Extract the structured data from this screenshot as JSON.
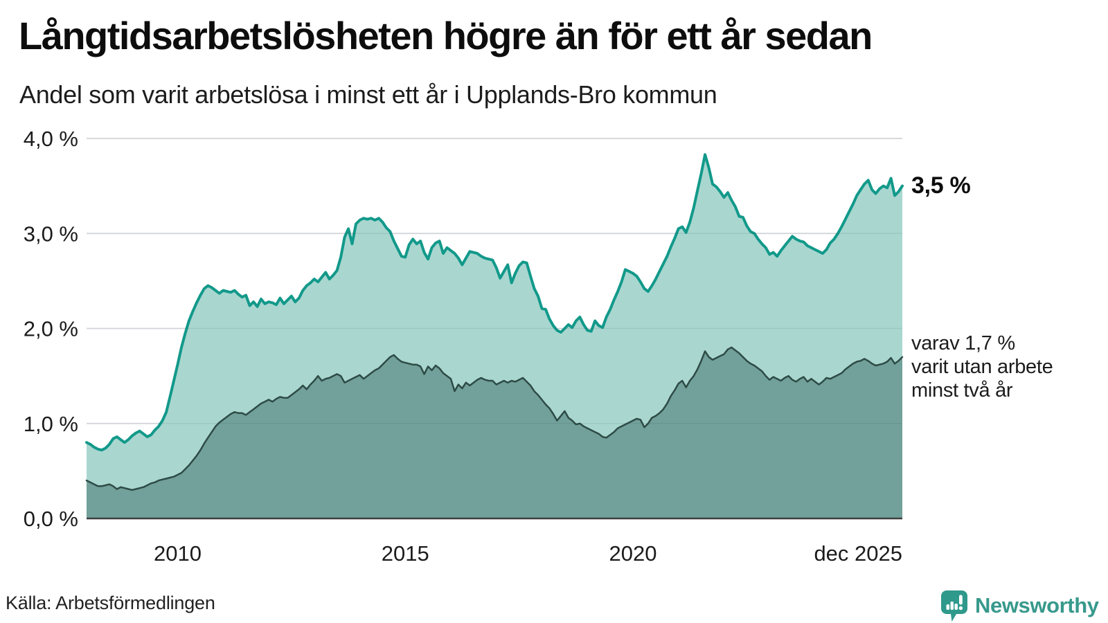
{
  "header": {
    "title": "Långtidsarbetslösheten högre än för ett år sedan",
    "subtitle": "Andel som varit arbetslösa i minst ett år i Upplands-Bro kommun"
  },
  "chart_data": {
    "type": "area",
    "title": "Långtidsarbetslösheten högre än för ett år sedan",
    "subtitle": "Andel som varit arbetslösa i minst ett år i Upplands-Bro kommun",
    "unit": "%",
    "x_range": "jan 2008 – dec 2025 (monthly)",
    "ylim": [
      0,
      4
    ],
    "grid": true,
    "legend_position": "right-edge-annotations",
    "style": {
      "grid": "#e5e5e9",
      "grid_over_fill": "rgba(40,70,65,0.10)",
      "axis": "#3f3f3f",
      "text": "#1b1b1b",
      "tick_font_size": 31
    },
    "yticks": [
      {
        "value": 0,
        "label": "0,0 %"
      },
      {
        "value": 1,
        "label": "1,0 %"
      },
      {
        "value": 2,
        "label": "2,0 %"
      },
      {
        "value": 3,
        "label": "3,0 %"
      },
      {
        "value": 4,
        "label": "4,0 %"
      }
    ],
    "xticks": [
      {
        "month_index": 24,
        "label": "2010",
        "anchor": "middle"
      },
      {
        "month_index": 84,
        "label": "2015",
        "anchor": "middle"
      },
      {
        "month_index": 144,
        "label": "2020",
        "anchor": "middle"
      },
      {
        "month_index": 215,
        "label": "dec 2025",
        "anchor": "end"
      }
    ],
    "series": [
      {
        "id": "minst-ett-ar",
        "name": "Andel som varit arbetslösa i minst ett år",
        "color": "#12998a",
        "fill": "#a9d7d0",
        "line_width": 4,
        "end_value_label": "3,5 %",
        "values": [
          0.8,
          0.78,
          0.75,
          0.73,
          0.72,
          0.74,
          0.78,
          0.84,
          0.86,
          0.83,
          0.8,
          0.83,
          0.87,
          0.9,
          0.92,
          0.89,
          0.86,
          0.88,
          0.93,
          0.97,
          1.03,
          1.12,
          1.28,
          1.45,
          1.62,
          1.8,
          1.95,
          2.08,
          2.18,
          2.27,
          2.35,
          2.42,
          2.45,
          2.43,
          2.4,
          2.37,
          2.4,
          2.39,
          2.38,
          2.4,
          2.36,
          2.33,
          2.35,
          2.24,
          2.28,
          2.23,
          2.31,
          2.26,
          2.28,
          2.27,
          2.25,
          2.32,
          2.26,
          2.3,
          2.34,
          2.28,
          2.32,
          2.4,
          2.45,
          2.48,
          2.52,
          2.49,
          2.54,
          2.59,
          2.52,
          2.56,
          2.61,
          2.75,
          2.96,
          3.05,
          2.89,
          3.1,
          3.14,
          3.16,
          3.15,
          3.16,
          3.14,
          3.16,
          3.12,
          3.06,
          3.02,
          2.92,
          2.84,
          2.76,
          2.75,
          2.88,
          2.94,
          2.89,
          2.92,
          2.8,
          2.73,
          2.85,
          2.9,
          2.92,
          2.79,
          2.85,
          2.82,
          2.79,
          2.74,
          2.67,
          2.74,
          2.81,
          2.8,
          2.79,
          2.76,
          2.74,
          2.73,
          2.72,
          2.64,
          2.53,
          2.6,
          2.67,
          2.48,
          2.58,
          2.66,
          2.7,
          2.69,
          2.55,
          2.42,
          2.34,
          2.21,
          2.2,
          2.1,
          2.03,
          1.98,
          1.96,
          2.0,
          2.04,
          2.01,
          2.08,
          2.12,
          2.04,
          1.98,
          1.97,
          2.08,
          2.03,
          2.01,
          2.12,
          2.2,
          2.3,
          2.39,
          2.49,
          2.62,
          2.6,
          2.58,
          2.55,
          2.49,
          2.42,
          2.39,
          2.45,
          2.52,
          2.6,
          2.68,
          2.76,
          2.86,
          2.95,
          3.05,
          3.07,
          3.01,
          3.12,
          3.27,
          3.45,
          3.63,
          3.83,
          3.69,
          3.52,
          3.49,
          3.44,
          3.38,
          3.43,
          3.35,
          3.28,
          3.18,
          3.17,
          3.08,
          3.02,
          3.0,
          2.94,
          2.89,
          2.85,
          2.78,
          2.8,
          2.76,
          2.82,
          2.87,
          2.92,
          2.97,
          2.94,
          2.92,
          2.91,
          2.87,
          2.85,
          2.83,
          2.81,
          2.79,
          2.83,
          2.9,
          2.94,
          3.0,
          3.07,
          3.15,
          3.23,
          3.31,
          3.4,
          3.46,
          3.52,
          3.56,
          3.46,
          3.42,
          3.47,
          3.5,
          3.48,
          3.58,
          3.4,
          3.44,
          3.5
        ]
      },
      {
        "id": "minst-tva-ar",
        "name": "varav varit utan arbete minst två år",
        "color": "#2e4b46",
        "fill": "#72a09a",
        "line_width": 2.5,
        "end_value_label": "1,7 %",
        "values": [
          0.4,
          0.38,
          0.36,
          0.34,
          0.34,
          0.35,
          0.36,
          0.34,
          0.31,
          0.33,
          0.32,
          0.31,
          0.3,
          0.31,
          0.32,
          0.33,
          0.35,
          0.37,
          0.38,
          0.4,
          0.41,
          0.42,
          0.43,
          0.44,
          0.46,
          0.48,
          0.52,
          0.56,
          0.61,
          0.66,
          0.72,
          0.79,
          0.85,
          0.91,
          0.97,
          1.01,
          1.04,
          1.07,
          1.1,
          1.12,
          1.11,
          1.11,
          1.09,
          1.12,
          1.15,
          1.18,
          1.21,
          1.23,
          1.25,
          1.23,
          1.26,
          1.28,
          1.27,
          1.27,
          1.3,
          1.33,
          1.36,
          1.4,
          1.36,
          1.41,
          1.45,
          1.5,
          1.45,
          1.47,
          1.48,
          1.5,
          1.52,
          1.5,
          1.43,
          1.45,
          1.47,
          1.49,
          1.51,
          1.47,
          1.5,
          1.53,
          1.56,
          1.58,
          1.62,
          1.66,
          1.7,
          1.72,
          1.68,
          1.65,
          1.64,
          1.63,
          1.62,
          1.62,
          1.6,
          1.52,
          1.6,
          1.56,
          1.61,
          1.58,
          1.53,
          1.5,
          1.47,
          1.34,
          1.41,
          1.37,
          1.43,
          1.4,
          1.43,
          1.46,
          1.48,
          1.46,
          1.45,
          1.45,
          1.41,
          1.43,
          1.45,
          1.43,
          1.45,
          1.44,
          1.46,
          1.48,
          1.44,
          1.4,
          1.34,
          1.3,
          1.25,
          1.2,
          1.16,
          1.1,
          1.03,
          1.08,
          1.13,
          1.06,
          1.03,
          0.99,
          1.0,
          0.97,
          0.95,
          0.93,
          0.91,
          0.89,
          0.86,
          0.85,
          0.88,
          0.91,
          0.95,
          0.97,
          0.99,
          1.01,
          1.03,
          1.05,
          1.04,
          0.96,
          1.0,
          1.06,
          1.08,
          1.11,
          1.15,
          1.21,
          1.29,
          1.35,
          1.42,
          1.45,
          1.38,
          1.45,
          1.5,
          1.57,
          1.66,
          1.76,
          1.7,
          1.67,
          1.69,
          1.71,
          1.73,
          1.78,
          1.8,
          1.77,
          1.74,
          1.7,
          1.66,
          1.63,
          1.61,
          1.58,
          1.55,
          1.5,
          1.46,
          1.49,
          1.47,
          1.45,
          1.48,
          1.5,
          1.46,
          1.44,
          1.47,
          1.49,
          1.44,
          1.47,
          1.44,
          1.41,
          1.44,
          1.48,
          1.47,
          1.49,
          1.51,
          1.53,
          1.57,
          1.6,
          1.63,
          1.65,
          1.66,
          1.68,
          1.66,
          1.63,
          1.61,
          1.62,
          1.63,
          1.65,
          1.69,
          1.63,
          1.66,
          1.7
        ]
      }
    ],
    "end_labels": {
      "total": "3,5 %",
      "two_years_line1": "varav 1,7 %",
      "two_years_line2": "varit utan arbete",
      "two_years_line3": "minst två år"
    }
  },
  "footer": {
    "source": "Källa: Arbetsförmedlingen",
    "logo_text": "Newsworthy"
  },
  "colors": {
    "accent_teal": "#12998a",
    "fill_light": "#a9d7d0",
    "fill_dark": "#72a09a",
    "line_dark": "#2e4b46",
    "logo_teal": "#2f998c",
    "grid": "#e5e5e9",
    "axis": "#3f3f3f"
  }
}
